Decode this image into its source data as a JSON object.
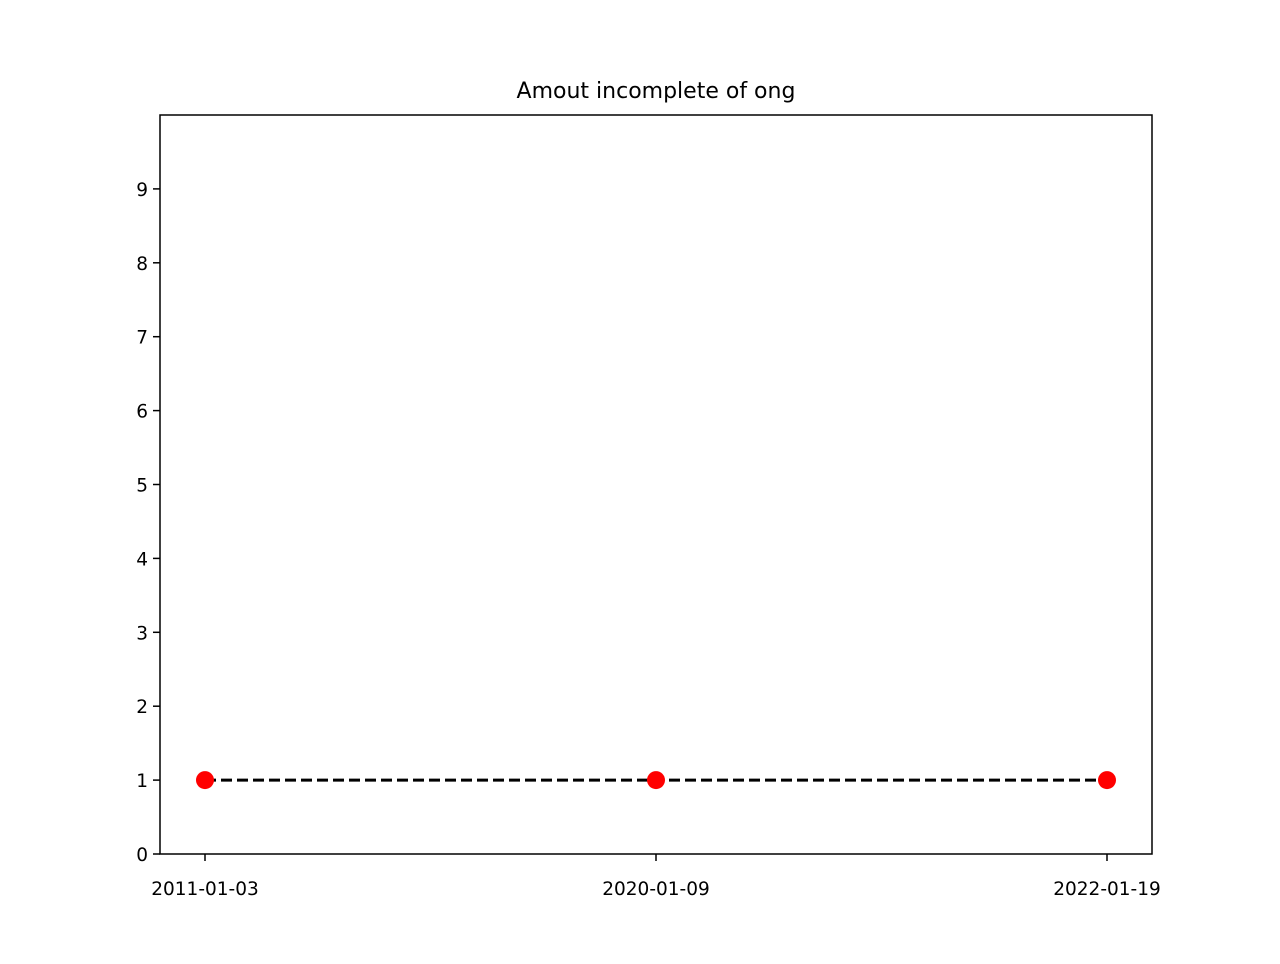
{
  "chart_data": {
    "type": "line",
    "title": "Amout incomplete of ong",
    "xlabel": "",
    "ylabel": "",
    "categories": [
      "2011-01-03",
      "2020-01-09",
      "2022-01-19"
    ],
    "series": [
      {
        "values": [
          1,
          1,
          1
        ],
        "line_color": "#000000",
        "line_style": "dashed",
        "marker_color": "#ff0000"
      }
    ],
    "ylim": [
      0,
      10
    ],
    "yticks": [
      0,
      1,
      2,
      3,
      4,
      5,
      6,
      7,
      8,
      9
    ],
    "grid": false,
    "legend": false
  }
}
